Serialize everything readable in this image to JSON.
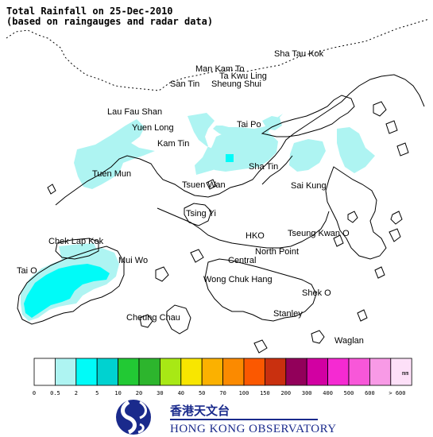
{
  "title": {
    "line1": "Total Rainfall on 25-Dec-2010",
    "line2": "(based on raingauges and radar data)"
  },
  "places": [
    "Sha Tau Kok",
    "Man Kam To",
    "Ta Kwu Ling",
    "San Tin",
    "Sheung Shui",
    "Lau Fau Shan",
    "Yuen Long",
    "Kam Tin",
    "Tai Po",
    "Tuen Mun",
    "Sha Tin",
    "Tsuen Wan",
    "Sai Kung",
    "Tsing Yi",
    "Chek Lap Kok",
    "HKO",
    "Tseung Kwan O",
    "Mui Wo",
    "Central",
    "North Point",
    "Tai O",
    "Wong Chuk Hang",
    "Shek O",
    "Cheung Chau",
    "Stanley",
    "Waglan"
  ],
  "legend": {
    "unit": "mm",
    "ticks": [
      "0",
      "0.5",
      "2",
      "5",
      "10",
      "20",
      "30",
      "40",
      "50",
      "70",
      "100",
      "150",
      "200",
      "300",
      "400",
      "500",
      "600",
      "> 600"
    ],
    "colors": [
      "#ffffff",
      "#aef4f2",
      "#00fbf8",
      "#00d2d0",
      "#22c934",
      "#2db52d",
      "#a8e815",
      "#f8e600",
      "#fbb100",
      "#fb8a00",
      "#fb5800",
      "#c9300f",
      "#92005a",
      "#d200a2",
      "#f52ad2",
      "#f857d9",
      "#f89ae6",
      "#fde0f8"
    ]
  },
  "logo": {
    "chinese": "香港天文台",
    "english": "HONG KONG OBSERVATORY"
  },
  "colors": {
    "rain_light": "#aef4f2",
    "rain_medium": "#00fbf8",
    "coastline": "#000000",
    "logo_blue": "#1a2a8c"
  }
}
